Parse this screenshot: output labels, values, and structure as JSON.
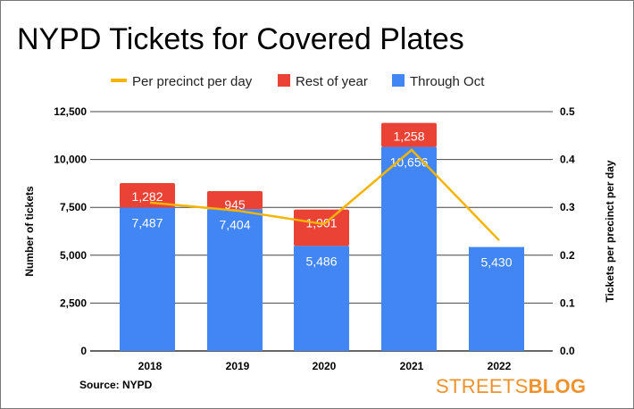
{
  "title": "NYPD Tickets for Covered Plates",
  "source": "Source: NYPD",
  "logo": {
    "light": "STREETS",
    "bold": "BLOG"
  },
  "chart_data": {
    "type": "bar",
    "stacked": true,
    "title": "NYPD Tickets for Covered Plates",
    "categories": [
      "2018",
      "2019",
      "2020",
      "2021",
      "2022"
    ],
    "series": [
      {
        "name": "Through Oct",
        "values": [
          7487,
          7404,
          5486,
          10656,
          5430
        ],
        "labels": [
          "7,487",
          "7,404",
          "5,486",
          "10,656",
          "5,430"
        ],
        "color": "#4285f4",
        "axis": "left"
      },
      {
        "name": "Rest of year",
        "values": [
          1282,
          945,
          1901,
          1258,
          null
        ],
        "labels": [
          "1,282",
          "945",
          "1,901",
          "1,258",
          ""
        ],
        "color": "#ea4335",
        "axis": "left"
      },
      {
        "name": "Per precinct per day",
        "type": "line",
        "values": [
          0.31,
          0.293,
          0.265,
          0.42,
          0.231
        ],
        "color": "#f4b400",
        "axis": "right"
      }
    ],
    "ylabel": "Number of tickets",
    "ylim": [
      0,
      12500
    ],
    "yticks": [
      "0",
      "2,500",
      "5,000",
      "7,500",
      "10,000",
      "12,500"
    ],
    "y2label": "Tickets per precinct per day",
    "y2lim": [
      0,
      0.5
    ],
    "y2ticks": [
      "0.0",
      "0.1",
      "0.2",
      "0.3",
      "0.4",
      "0.5"
    ],
    "grid": true,
    "legend": "top",
    "legend_entries": [
      "Per precinct per day",
      "Rest of year",
      "Through Oct"
    ]
  }
}
